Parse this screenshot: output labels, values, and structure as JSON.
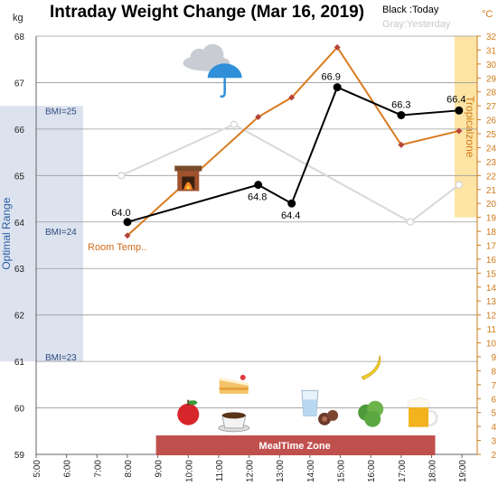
{
  "chart_data": {
    "type": "line",
    "title": "Intraday Weight Change (Mar 16, 2019)",
    "legend": {
      "today": "Black :Today",
      "yesterday": "Gray:Yesterday",
      "placement": "top-right"
    },
    "y_left": {
      "unit": "kg",
      "min": 59,
      "max": 68,
      "ticks": [
        "59",
        "60",
        "61",
        "62",
        "63",
        "64",
        "65",
        "66",
        "67",
        "68"
      ]
    },
    "y_right": {
      "unit": "°C",
      "min": 2,
      "max": 32,
      "ticks": [
        "2",
        "3",
        "4",
        "5",
        "6",
        "7",
        "8",
        "9",
        "10",
        "11",
        "12",
        "13",
        "14",
        "15",
        "16",
        "17",
        "18",
        "19",
        "20",
        "21",
        "22",
        "23",
        "24",
        "25",
        "26",
        "27",
        "28",
        "29",
        "30",
        "31",
        "32"
      ]
    },
    "x": {
      "min": 5,
      "max": 19.5,
      "ticks": [
        {
          "v": 5,
          "label": "5:00"
        },
        {
          "v": 6,
          "label": "6:00"
        },
        {
          "v": 7,
          "label": "7:00"
        },
        {
          "v": 8,
          "label": "8:00"
        },
        {
          "v": 9,
          "label": "9:00"
        },
        {
          "v": 10,
          "label": "10:00"
        },
        {
          "v": 11,
          "label": "11:00"
        },
        {
          "v": 12,
          "label": "12:00"
        },
        {
          "v": 13,
          "label": "13:00"
        },
        {
          "v": 14,
          "label": "14:00"
        },
        {
          "v": 15,
          "label": "15:00"
        },
        {
          "v": 16,
          "label": "16:00"
        },
        {
          "v": 17,
          "label": "17:00"
        },
        {
          "v": 18,
          "label": "18:00"
        },
        {
          "v": 19,
          "label": "19:00"
        }
      ]
    },
    "grid": true,
    "series": [
      {
        "name": "Today",
        "axis": "left",
        "color": "#000000",
        "points": [
          {
            "x": 8,
            "y": 64.0,
            "label": "64.0"
          },
          {
            "x": 12.3,
            "y": 64.8,
            "label": "64.8"
          },
          {
            "x": 13.4,
            "y": 64.4,
            "label": "64.4"
          },
          {
            "x": 14.9,
            "y": 66.9,
            "label": "66.9"
          },
          {
            "x": 17,
            "y": 66.3,
            "label": "66.3"
          },
          {
            "x": 18.9,
            "y": 66.4,
            "label": "66.4"
          }
        ]
      },
      {
        "name": "Yesterday",
        "axis": "left",
        "color": "#d8d8d8",
        "points": [
          {
            "x": 7.8,
            "y": 65.0
          },
          {
            "x": 11.5,
            "y": 66.1
          },
          {
            "x": 17.3,
            "y": 64.0
          },
          {
            "x": 18.9,
            "y": 64.8
          }
        ]
      },
      {
        "name": "Room Temp.",
        "axis": "right",
        "color": "#d97a1f",
        "points": [
          {
            "x": 8,
            "y": 17.7
          },
          {
            "x": 12.3,
            "y": 26.2
          },
          {
            "x": 13.4,
            "y": 27.6
          },
          {
            "x": 14.9,
            "y": 31.2
          },
          {
            "x": 17,
            "y": 24.2
          },
          {
            "x": 18.9,
            "y": 25.2
          }
        ]
      }
    ],
    "bands": [
      {
        "label": "Optimal Range",
        "color": "#dde3ee",
        "y_from": 61,
        "y_to": 66.5
      },
      {
        "label": "Tropicalzone",
        "color": "#fde4a5",
        "axis": "right",
        "y_from": 19,
        "y_to": 32
      }
    ],
    "bmi_lines": [
      {
        "label": "BMI=25",
        "y": 66.4
      },
      {
        "label": "BMI=24",
        "y": 63.8
      },
      {
        "label": "BMI=23",
        "y": 61.1
      }
    ],
    "meal_zone": {
      "label": "MealTime Zone",
      "x_from": 9,
      "x_to": 18,
      "color": "#c0504d"
    },
    "icons": [
      {
        "name": "cloud-icon",
        "x": 10.6,
        "y": 67.5
      },
      {
        "name": "umbrella-icon",
        "x": 11.2,
        "y": 67.1
      },
      {
        "name": "fireplace-icon",
        "x": 10,
        "y": 64.9
      },
      {
        "name": "cake-icon",
        "x": 11.5,
        "y": 60.5
      },
      {
        "name": "apple-icon",
        "x": 10,
        "y": 59.9
      },
      {
        "name": "coffee-icon",
        "x": 11.5,
        "y": 59.8
      },
      {
        "name": "water-glass-icon",
        "x": 14,
        "y": 60.1
      },
      {
        "name": "sausage-icon",
        "x": 14.6,
        "y": 59.8
      },
      {
        "name": "banana-icon",
        "x": 16,
        "y": 60.9
      },
      {
        "name": "vegetable-icon",
        "x": 16,
        "y": 59.9
      },
      {
        "name": "beer-icon",
        "x": 17.6,
        "y": 59.9
      }
    ]
  }
}
